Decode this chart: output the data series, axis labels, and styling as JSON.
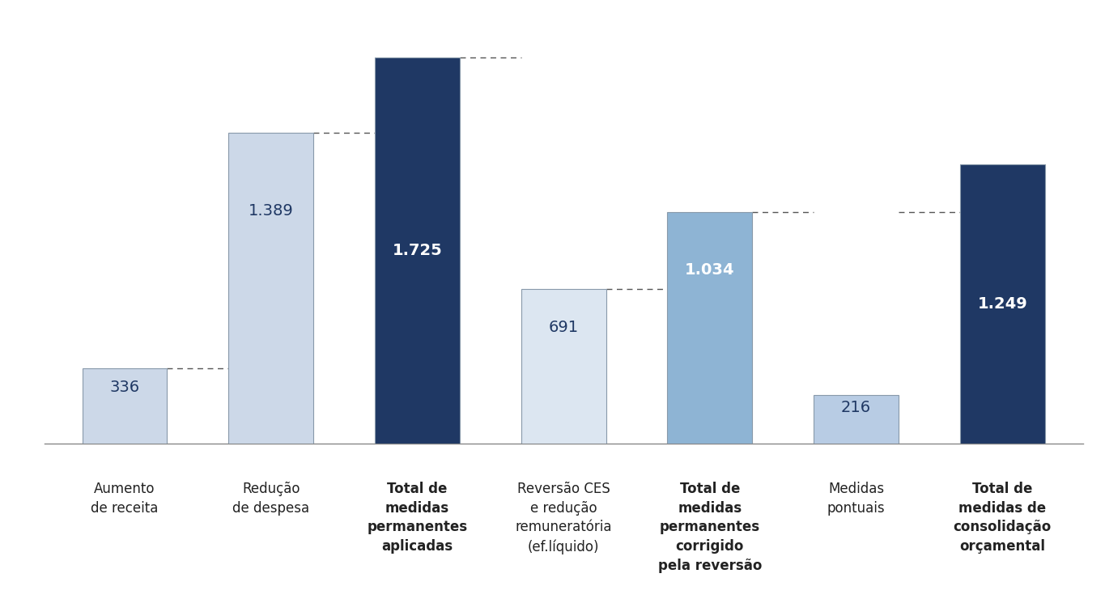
{
  "categories": [
    "Aumento\nde receita",
    "Redução\nde despesa",
    "Total de\nmedidas\npermanentes\naplicadas",
    "Reversão CES\ne redução\nremuneratória\n(ef.líquido)",
    "Total de\nmedidas\npermanentes\ncorrigido\npela reversão",
    "Medidas\npontuais",
    "Total de\nmedidas de\nconsolidação\norçamental"
  ],
  "values": [
    336,
    1389,
    1725,
    691,
    1034,
    216,
    1249
  ],
  "bar_colors": [
    "#ccd8e8",
    "#ccd8e8",
    "#1f3864",
    "#dce6f1",
    "#8eb4d4",
    "#b8cce4",
    "#1f3864"
  ],
  "label_bold": [
    false,
    false,
    true,
    false,
    true,
    false,
    true
  ],
  "bar_labels": [
    "336",
    "1.389",
    "1.725",
    "691",
    "1.034",
    "216",
    "1.249"
  ],
  "label_text_colors": [
    "#1f3864",
    "#1f3864",
    "#ffffff",
    "#1f3864",
    "#ffffff",
    "#1f3864",
    "#ffffff"
  ],
  "label_bold_text": [
    false,
    false,
    true,
    false,
    true,
    false,
    true
  ],
  "ylim": [
    0,
    1900
  ],
  "background_color": "#ffffff",
  "bar_width": 0.58,
  "label_fontsize": 14,
  "xlabel_fontsize": 12,
  "tick_label_bold_indices": [
    2,
    4,
    6
  ],
  "border_color": "#8899aa",
  "border_linewidth": 0.8
}
